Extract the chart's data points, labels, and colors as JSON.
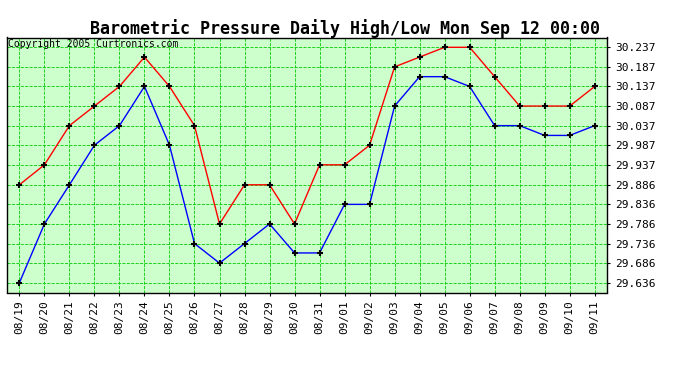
{
  "title": "Barometric Pressure Daily High/Low Mon Sep 12 00:00",
  "copyright": "Copyright 2005 Curtronics.com",
  "labels": [
    "08/19",
    "08/20",
    "08/21",
    "08/22",
    "08/23",
    "08/24",
    "08/25",
    "08/26",
    "08/27",
    "08/28",
    "08/29",
    "08/30",
    "08/31",
    "09/01",
    "09/02",
    "09/03",
    "09/04",
    "09/05",
    "09/06",
    "09/07",
    "09/08",
    "09/09",
    "09/10",
    "09/11"
  ],
  "high_values": [
    29.886,
    29.937,
    30.037,
    30.087,
    30.137,
    30.212,
    30.137,
    30.037,
    29.786,
    29.886,
    29.886,
    29.786,
    29.937,
    29.937,
    29.987,
    30.187,
    30.212,
    30.237,
    30.237,
    30.162,
    30.087,
    30.087,
    30.087,
    30.137
  ],
  "low_values": [
    29.636,
    29.786,
    29.886,
    29.987,
    30.037,
    30.137,
    29.987,
    29.736,
    29.686,
    29.736,
    29.786,
    29.712,
    29.712,
    29.836,
    29.836,
    30.087,
    30.162,
    30.162,
    30.137,
    30.037,
    30.037,
    30.012,
    30.012,
    30.037
  ],
  "high_color": "#ff0000",
  "low_color": "#0000ff",
  "marker_color": "#000000",
  "plot_bg_color": "#ccffcc",
  "fig_bg_color": "#ffffff",
  "grid_color": "#00cc00",
  "title_color": "#000000",
  "border_color": "#000000",
  "ytick_values": [
    29.636,
    29.686,
    29.736,
    29.786,
    29.836,
    29.886,
    29.937,
    29.987,
    30.037,
    30.087,
    30.137,
    30.187,
    30.237
  ],
  "ylim_min": 29.611,
  "ylim_max": 30.262,
  "title_fontsize": 12,
  "tick_fontsize": 8,
  "copyright_fontsize": 7
}
